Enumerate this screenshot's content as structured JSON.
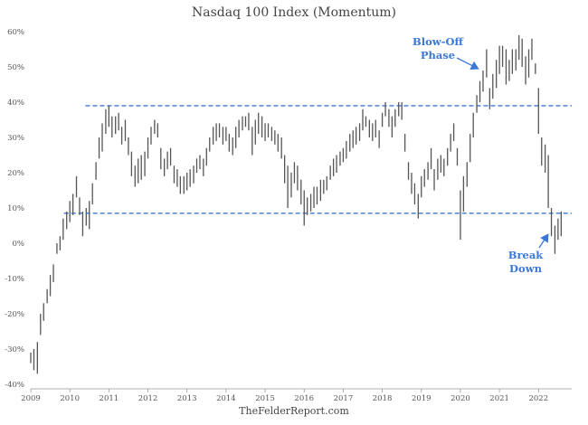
{
  "chart_data": {
    "type": "bar",
    "subtype": "high-low range bars (monthly)",
    "title": "Nasdaq 100 Index (Momentum)",
    "source": "TheFelderReport.com",
    "xlabel": "",
    "ylabel": "",
    "x_ticks": [
      "2009",
      "2010",
      "2011",
      "2012",
      "2013",
      "2014",
      "2015",
      "2016",
      "2017",
      "2018",
      "2019",
      "2020",
      "2021",
      "2022"
    ],
    "xlim": [
      2009.0,
      2022.85
    ],
    "y_ticks": [
      "-40%",
      "-30%",
      "-20%",
      "-10%",
      "0%",
      "10%",
      "20%",
      "30%",
      "40%",
      "50%",
      "60%"
    ],
    "ylim": [
      -40,
      60
    ],
    "grid": false,
    "reference_lines": [
      {
        "value": 39,
        "from": 2010.4,
        "to": 2022.85,
        "color": "#3a78d6",
        "style": "dashed"
      },
      {
        "value": 8.5,
        "from": 2009.85,
        "to": 2022.85,
        "color": "#3a78d6",
        "style": "dashed"
      }
    ],
    "annotations": [
      {
        "lines": [
          "Blow-Off",
          "Phase"
        ],
        "arrow_to": [
          2020.5,
          49.5
        ]
      },
      {
        "lines": [
          "Break",
          "Down"
        ],
        "arrow_to": [
          2022.15,
          3.5
        ]
      }
    ],
    "bar_color": "#555555",
    "ranges": [
      [
        2009.0,
        -34,
        -31
      ],
      [
        2009.08,
        -36,
        -30
      ],
      [
        2009.17,
        -37,
        -28
      ],
      [
        2009.25,
        -26,
        -20
      ],
      [
        2009.33,
        -22,
        -17
      ],
      [
        2009.42,
        -17,
        -13
      ],
      [
        2009.5,
        -15,
        -9
      ],
      [
        2009.58,
        -11,
        -6
      ],
      [
        2009.67,
        -3,
        0
      ],
      [
        2009.75,
        -2,
        2
      ],
      [
        2009.83,
        1,
        7
      ],
      [
        2009.92,
        4,
        9
      ],
      [
        2010.0,
        6,
        12
      ],
      [
        2010.08,
        8,
        14
      ],
      [
        2010.17,
        13,
        19
      ],
      [
        2010.25,
        8,
        13
      ],
      [
        2010.33,
        2,
        9
      ],
      [
        2010.42,
        5,
        10
      ],
      [
        2010.5,
        4,
        12
      ],
      [
        2010.58,
        11,
        17
      ],
      [
        2010.67,
        18,
        23
      ],
      [
        2010.75,
        24,
        30
      ],
      [
        2010.83,
        26,
        34
      ],
      [
        2010.92,
        31,
        38
      ],
      [
        2011.0,
        33,
        39
      ],
      [
        2011.08,
        30,
        36
      ],
      [
        2011.17,
        31,
        36
      ],
      [
        2011.25,
        32,
        37
      ],
      [
        2011.33,
        28,
        33
      ],
      [
        2011.42,
        29,
        35
      ],
      [
        2011.5,
        25,
        30
      ],
      [
        2011.58,
        19,
        26
      ],
      [
        2011.67,
        16,
        22
      ],
      [
        2011.75,
        17,
        24
      ],
      [
        2011.83,
        18,
        25
      ],
      [
        2011.92,
        19,
        26
      ],
      [
        2012.0,
        24,
        30
      ],
      [
        2012.08,
        28,
        33
      ],
      [
        2012.17,
        31,
        35
      ],
      [
        2012.25,
        30,
        34
      ],
      [
        2012.33,
        21,
        27
      ],
      [
        2012.42,
        19,
        24
      ],
      [
        2012.5,
        21,
        26
      ],
      [
        2012.58,
        22,
        27
      ],
      [
        2012.67,
        17,
        22
      ],
      [
        2012.75,
        16,
        21
      ],
      [
        2012.83,
        14,
        19
      ],
      [
        2012.92,
        14,
        19
      ],
      [
        2013.0,
        15,
        20
      ],
      [
        2013.08,
        16,
        21
      ],
      [
        2013.17,
        17,
        22
      ],
      [
        2013.25,
        20,
        24
      ],
      [
        2013.33,
        21,
        25
      ],
      [
        2013.42,
        19,
        24
      ],
      [
        2013.5,
        22,
        27
      ],
      [
        2013.58,
        26,
        30
      ],
      [
        2013.67,
        28,
        33
      ],
      [
        2013.75,
        29,
        34
      ],
      [
        2013.83,
        30,
        34
      ],
      [
        2013.92,
        28,
        33
      ],
      [
        2014.0,
        29,
        33
      ],
      [
        2014.08,
        26,
        31
      ],
      [
        2014.17,
        25,
        30
      ],
      [
        2014.25,
        27,
        33
      ],
      [
        2014.33,
        30,
        35
      ],
      [
        2014.42,
        32,
        36
      ],
      [
        2014.5,
        33,
        36
      ],
      [
        2014.58,
        32,
        37
      ],
      [
        2014.67,
        25,
        33
      ],
      [
        2014.75,
        28,
        35
      ],
      [
        2014.83,
        31,
        37
      ],
      [
        2014.92,
        30,
        36
      ],
      [
        2015.0,
        29,
        34
      ],
      [
        2015.08,
        30,
        34
      ],
      [
        2015.17,
        29,
        33
      ],
      [
        2015.25,
        28,
        32
      ],
      [
        2015.33,
        26,
        31
      ],
      [
        2015.42,
        24,
        30
      ],
      [
        2015.5,
        17,
        25
      ],
      [
        2015.58,
        10,
        22
      ],
      [
        2015.67,
        13,
        20
      ],
      [
        2015.75,
        17,
        23
      ],
      [
        2015.83,
        15,
        22
      ],
      [
        2015.92,
        11,
        18
      ],
      [
        2016.0,
        5,
        15
      ],
      [
        2016.08,
        8,
        13
      ],
      [
        2016.17,
        9,
        14
      ],
      [
        2016.25,
        10,
        16
      ],
      [
        2016.33,
        11,
        16
      ],
      [
        2016.42,
        12,
        18
      ],
      [
        2016.5,
        14,
        18
      ],
      [
        2016.58,
        15,
        19
      ],
      [
        2016.67,
        18,
        22
      ],
      [
        2016.75,
        19,
        24
      ],
      [
        2016.83,
        20,
        25
      ],
      [
        2016.92,
        22,
        26
      ],
      [
        2017.0,
        23,
        27
      ],
      [
        2017.08,
        24,
        29
      ],
      [
        2017.17,
        26,
        31
      ],
      [
        2017.25,
        27,
        32
      ],
      [
        2017.33,
        28,
        33
      ],
      [
        2017.42,
        29,
        34
      ],
      [
        2017.5,
        32,
        38
      ],
      [
        2017.58,
        33,
        36
      ],
      [
        2017.67,
        30,
        35
      ],
      [
        2017.75,
        29,
        34
      ],
      [
        2017.83,
        30,
        35
      ],
      [
        2017.92,
        27,
        32
      ],
      [
        2018.0,
        33,
        37
      ],
      [
        2018.08,
        36,
        40
      ],
      [
        2018.17,
        33,
        38
      ],
      [
        2018.25,
        30,
        36
      ],
      [
        2018.33,
        33,
        38
      ],
      [
        2018.42,
        36,
        40
      ],
      [
        2018.5,
        35,
        40
      ],
      [
        2018.58,
        26,
        31
      ],
      [
        2018.67,
        18,
        23
      ],
      [
        2018.75,
        14,
        20
      ],
      [
        2018.83,
        11,
        17
      ],
      [
        2018.92,
        7,
        14
      ],
      [
        2019.0,
        13,
        19
      ],
      [
        2019.08,
        16,
        21
      ],
      [
        2019.17,
        18,
        23
      ],
      [
        2019.25,
        21,
        27
      ],
      [
        2019.33,
        15,
        21
      ],
      [
        2019.42,
        18,
        24
      ],
      [
        2019.5,
        20,
        25
      ],
      [
        2019.58,
        19,
        24
      ],
      [
        2019.67,
        22,
        27
      ],
      [
        2019.75,
        26,
        31
      ],
      [
        2019.83,
        29,
        34
      ],
      [
        2019.92,
        22,
        27
      ],
      [
        2020.0,
        1,
        15
      ],
      [
        2020.08,
        9,
        19
      ],
      [
        2020.17,
        16,
        23
      ],
      [
        2020.25,
        23,
        31
      ],
      [
        2020.33,
        30,
        37
      ],
      [
        2020.42,
        37,
        42
      ],
      [
        2020.5,
        40,
        46
      ],
      [
        2020.58,
        43,
        49
      ],
      [
        2020.67,
        47,
        55
      ],
      [
        2020.75,
        38,
        44
      ],
      [
        2020.83,
        41,
        48
      ],
      [
        2020.92,
        44,
        52
      ],
      [
        2021.0,
        48,
        56
      ],
      [
        2021.08,
        50,
        56
      ],
      [
        2021.17,
        45,
        55
      ],
      [
        2021.25,
        46,
        52
      ],
      [
        2021.33,
        48,
        55
      ],
      [
        2021.42,
        49,
        55
      ],
      [
        2021.5,
        52,
        59
      ],
      [
        2021.58,
        50,
        58
      ],
      [
        2021.67,
        45,
        53
      ],
      [
        2021.75,
        47,
        55
      ],
      [
        2021.83,
        52,
        58
      ],
      [
        2021.92,
        48,
        51
      ],
      [
        2022.0,
        31,
        44
      ],
      [
        2022.08,
        22,
        30
      ],
      [
        2022.17,
        20,
        28
      ],
      [
        2022.25,
        10,
        25
      ],
      [
        2022.33,
        2,
        10
      ],
      [
        2022.42,
        -3,
        5
      ],
      [
        2022.5,
        1,
        7
      ],
      [
        2022.58,
        2,
        9
      ]
    ]
  }
}
